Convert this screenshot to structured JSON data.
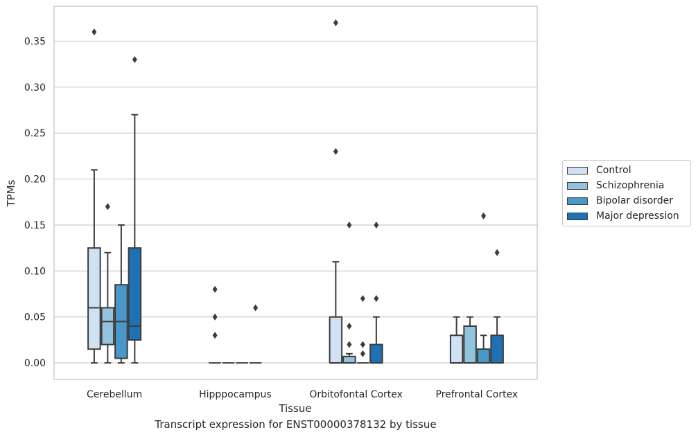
{
  "chart_data": {
    "type": "boxplot",
    "caption": "Transcript expression for ENST00000378132 by tissue",
    "xlabel": "Tissue",
    "ylabel": "TPMs",
    "ylim": [
      -0.018,
      0.388
    ],
    "yticks": [
      "0.00",
      "0.05",
      "0.10",
      "0.15",
      "0.20",
      "0.25",
      "0.30",
      "0.35"
    ],
    "ytick_values": [
      0,
      0.05,
      0.1,
      0.15,
      0.2,
      0.25,
      0.3,
      0.35
    ],
    "grid": "horizontal",
    "legend_position": "right",
    "categories": [
      "Cerebellum",
      "Hipppocampus",
      "Orbitofontal Cortex",
      "Prefrontal Cortex"
    ],
    "series": [
      {
        "name": "Control",
        "color": "#cfe1f2",
        "boxes": [
          {
            "q1": 0.015,
            "median": 0.06,
            "q3": 0.125,
            "whisker_low": 0.0,
            "whisker_high": 0.21,
            "outliers": [
              0.36
            ]
          },
          {
            "q1": 0.0,
            "median": 0.0,
            "q3": 0.0,
            "whisker_low": 0.0,
            "whisker_high": 0.0,
            "outliers": [
              0.03,
              0.05,
              0.08
            ]
          },
          {
            "q1": 0.0,
            "median": 0.0,
            "q3": 0.05,
            "whisker_low": 0.0,
            "whisker_high": 0.11,
            "outliers": [
              0.23,
              0.37
            ]
          },
          {
            "q1": 0.0,
            "median": 0.0,
            "q3": 0.03,
            "whisker_low": 0.0,
            "whisker_high": 0.05,
            "outliers": []
          }
        ]
      },
      {
        "name": "Schizophrenia",
        "color": "#93c4de",
        "boxes": [
          {
            "q1": 0.02,
            "median": 0.045,
            "q3": 0.06,
            "whisker_low": 0.0,
            "whisker_high": 0.12,
            "outliers": [
              0.17
            ]
          },
          {
            "q1": 0.0,
            "median": 0.0,
            "q3": 0.0,
            "whisker_low": 0.0,
            "whisker_high": 0.0,
            "outliers": []
          },
          {
            "q1": 0.0,
            "median": 0.0,
            "q3": 0.007,
            "whisker_low": 0.0,
            "whisker_high": 0.01,
            "outliers": [
              0.02,
              0.04,
              0.15
            ]
          },
          {
            "q1": 0.0,
            "median": 0.0,
            "q3": 0.04,
            "whisker_low": 0.0,
            "whisker_high": 0.05,
            "outliers": []
          }
        ]
      },
      {
        "name": "Bipolar disorder",
        "color": "#4a98c9",
        "boxes": [
          {
            "q1": 0.005,
            "median": 0.045,
            "q3": 0.085,
            "whisker_low": 0.0,
            "whisker_high": 0.15,
            "outliers": []
          },
          {
            "q1": 0.0,
            "median": 0.0,
            "q3": 0.0,
            "whisker_low": 0.0,
            "whisker_high": 0.0,
            "outliers": []
          },
          {
            "q1": 0.0,
            "median": 0.0,
            "q3": 0.0,
            "whisker_low": 0.0,
            "whisker_high": 0.0,
            "outliers": [
              0.01,
              0.02,
              0.07
            ]
          },
          {
            "q1": 0.0,
            "median": 0.0,
            "q3": 0.015,
            "whisker_low": 0.0,
            "whisker_high": 0.03,
            "outliers": [
              0.16
            ]
          }
        ]
      },
      {
        "name": "Major depression",
        "color": "#2070b4",
        "boxes": [
          {
            "q1": 0.025,
            "median": 0.04,
            "q3": 0.125,
            "whisker_low": 0.0,
            "whisker_high": 0.27,
            "outliers": [
              0.33
            ]
          },
          {
            "q1": 0.0,
            "median": 0.0,
            "q3": 0.0,
            "whisker_low": 0.0,
            "whisker_high": 0.0,
            "outliers": [
              0.06
            ]
          },
          {
            "q1": 0.0,
            "median": 0.0,
            "q3": 0.02,
            "whisker_low": 0.0,
            "whisker_high": 0.05,
            "outliers": [
              0.07,
              0.15
            ]
          },
          {
            "q1": 0.0,
            "median": 0.0,
            "q3": 0.03,
            "whisker_low": 0.0,
            "whisker_high": 0.05,
            "outliers": [
              0.12
            ]
          }
        ]
      }
    ]
  },
  "legend": {
    "items": [
      {
        "label": "Control",
        "color": "#cfe1f2"
      },
      {
        "label": "Schizophrenia",
        "color": "#93c4de"
      },
      {
        "label": "Bipolar disorder",
        "color": "#4a98c9"
      },
      {
        "label": "Major depression",
        "color": "#2070b4"
      }
    ]
  }
}
